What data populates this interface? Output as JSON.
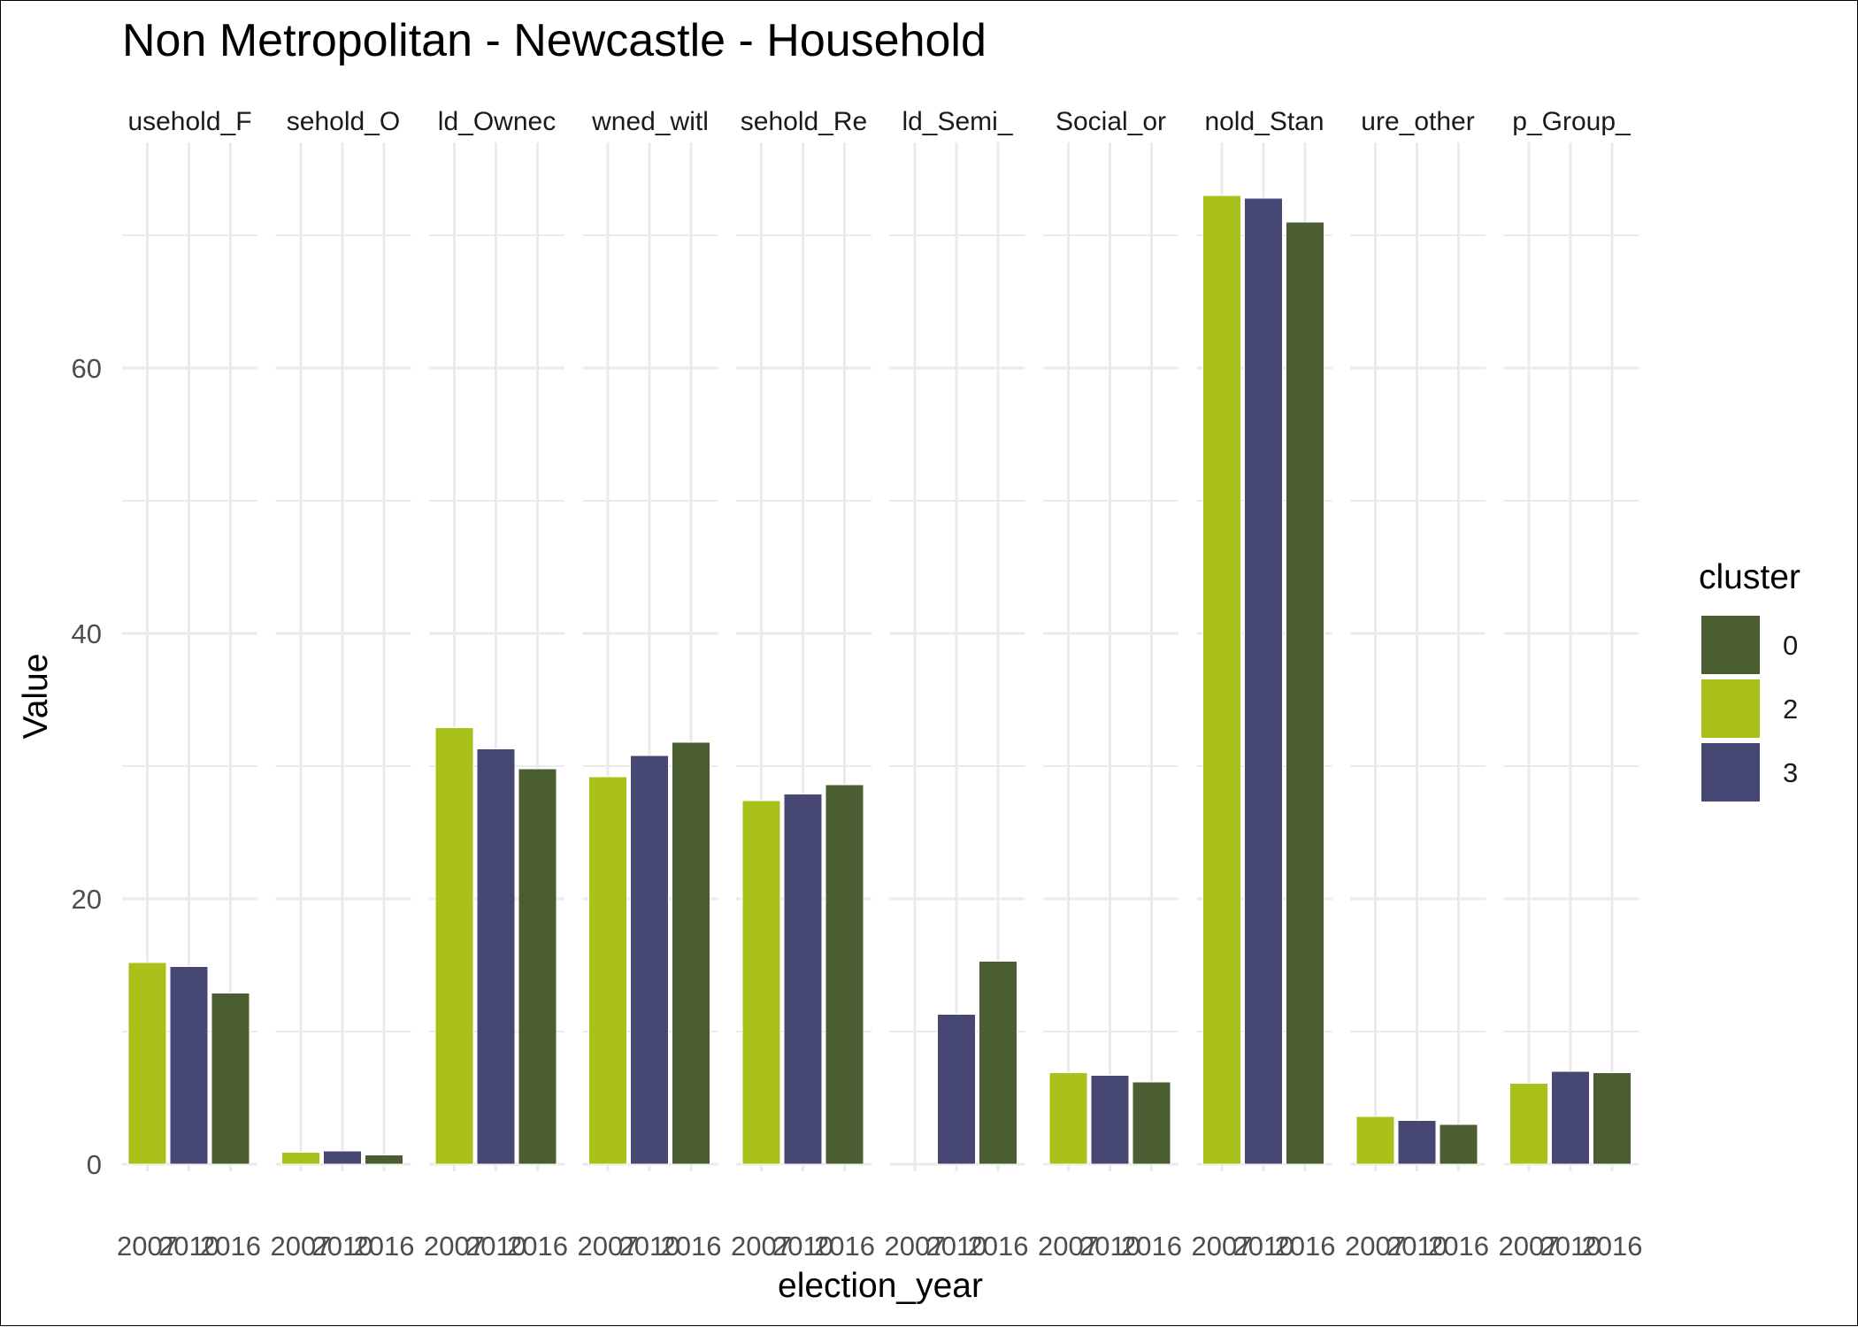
{
  "chart_data": {
    "type": "bar",
    "title": "Non Metropolitan - Newcastle - Household",
    "xlabel": "election_year",
    "ylabel": "Value",
    "ylim": [
      0,
      75
    ],
    "y_ticks": [
      0,
      20,
      40,
      60
    ],
    "categories": [
      "2007",
      "2010",
      "2016"
    ],
    "facets": [
      {
        "label": "usehold_F",
        "values": [
          15.2,
          14.9,
          12.9
        ]
      },
      {
        "label": "sehold_O",
        "values": [
          0.9,
          1.0,
          0.7
        ]
      },
      {
        "label": "ld_Ownec",
        "values": [
          32.9,
          31.3,
          29.8
        ]
      },
      {
        "label": "wned_witl",
        "values": [
          29.2,
          30.8,
          31.8
        ]
      },
      {
        "label": "sehold_Re",
        "values": [
          27.4,
          27.9,
          28.6
        ]
      },
      {
        "label": "ld_Semi_",
        "values": [
          null,
          11.3,
          15.3
        ]
      },
      {
        "label": "Social_or",
        "values": [
          6.9,
          6.7,
          6.2
        ]
      },
      {
        "label": "nold_Stan",
        "values": [
          73.0,
          72.8,
          71.0
        ]
      },
      {
        "label": "ure_other",
        "values": [
          3.6,
          3.3,
          3.0
        ]
      },
      {
        "label": "p_Group_",
        "values": [
          6.1,
          7.0,
          6.9
        ]
      }
    ],
    "year_cluster": {
      "2007": "2",
      "2010": "3",
      "2016": "0"
    },
    "legend": {
      "title": "cluster",
      "placement": "right",
      "items": [
        {
          "label": "0",
          "color": "#4a5e31"
        },
        {
          "label": "2",
          "color": "#aac11b"
        },
        {
          "label": "3",
          "color": "#474773"
        }
      ]
    },
    "grid": true
  }
}
